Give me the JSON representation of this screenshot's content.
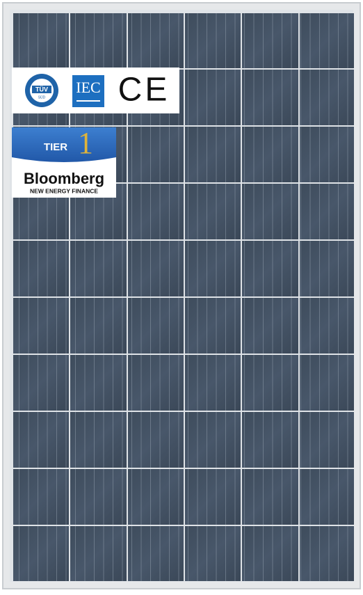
{
  "certifications": {
    "tuv": {
      "name": "TÜV",
      "sub": "SÜD"
    },
    "iec": "IEC",
    "ce": "CE"
  },
  "ranking": {
    "tier": "TIER",
    "level": "1",
    "brand": "Bloomberg",
    "division": "NEW ENERGY FINANCE"
  }
}
